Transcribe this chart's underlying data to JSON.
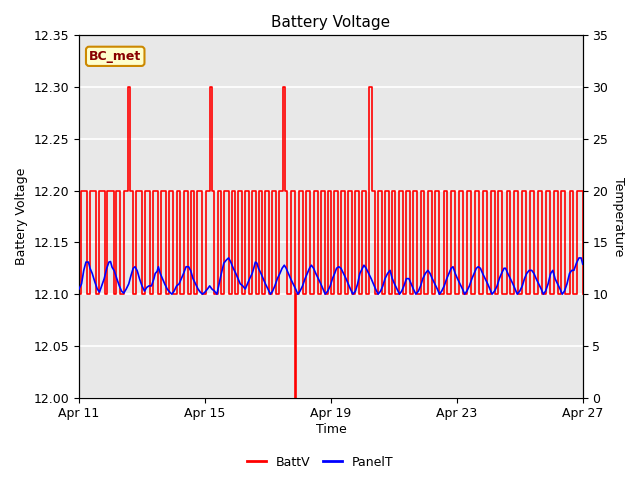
{
  "title": "Battery Voltage",
  "xlabel": "Time",
  "ylabel_left": "Battery Voltage",
  "ylabel_right": "Temperature",
  "annotation": "BC_met",
  "ylim_left": [
    12.0,
    12.35
  ],
  "ylim_right": [
    0,
    35
  ],
  "yticks_left": [
    12.0,
    12.05,
    12.1,
    12.15,
    12.2,
    12.25,
    12.3,
    12.35
  ],
  "yticks_right": [
    0,
    5,
    10,
    15,
    20,
    25,
    30,
    35
  ],
  "xtick_labels": [
    "Apr 11",
    "Apr 15",
    "Apr 19",
    "Apr 23",
    "Apr 27"
  ],
  "background_color": "#ffffff",
  "plot_bg_color": "#e8e8e8",
  "grid_color": "#ffffff",
  "batt_color": "#ff0000",
  "panel_color": "#0000ff",
  "annotation_bg": "#ffffcc",
  "annotation_border": "#cc8800",
  "annotation_text_color": "#880000",
  "batt_data": [
    [
      0,
      12.1
    ],
    [
      0.05,
      12.1
    ],
    [
      0.05,
      12.2
    ],
    [
      0.25,
      12.2
    ],
    [
      0.25,
      12.1
    ],
    [
      0.35,
      12.1
    ],
    [
      0.35,
      12.2
    ],
    [
      0.55,
      12.2
    ],
    [
      0.55,
      12.1
    ],
    [
      0.62,
      12.1
    ],
    [
      0.62,
      12.2
    ],
    [
      0.82,
      12.2
    ],
    [
      0.82,
      12.1
    ],
    [
      0.9,
      12.1
    ],
    [
      0.9,
      12.2
    ],
    [
      1.1,
      12.2
    ],
    [
      1.1,
      12.1
    ],
    [
      1.18,
      12.1
    ],
    [
      1.18,
      12.2
    ],
    [
      1.3,
      12.2
    ],
    [
      1.3,
      12.1
    ],
    [
      1.42,
      12.1
    ],
    [
      1.42,
      12.2
    ],
    [
      1.55,
      12.2
    ],
    [
      1.55,
      12.3
    ],
    [
      1.62,
      12.3
    ],
    [
      1.62,
      12.2
    ],
    [
      1.7,
      12.2
    ],
    [
      1.7,
      12.1
    ],
    [
      1.8,
      12.1
    ],
    [
      1.8,
      12.2
    ],
    [
      2.0,
      12.2
    ],
    [
      2.0,
      12.1
    ],
    [
      2.1,
      12.1
    ],
    [
      2.1,
      12.2
    ],
    [
      2.25,
      12.2
    ],
    [
      2.25,
      12.1
    ],
    [
      2.35,
      12.1
    ],
    [
      2.35,
      12.2
    ],
    [
      2.5,
      12.2
    ],
    [
      2.5,
      12.1
    ],
    [
      2.6,
      12.1
    ],
    [
      2.6,
      12.2
    ],
    [
      2.75,
      12.2
    ],
    [
      2.75,
      12.1
    ],
    [
      2.85,
      12.1
    ],
    [
      2.85,
      12.2
    ],
    [
      3.0,
      12.2
    ],
    [
      3.0,
      12.1
    ],
    [
      3.1,
      12.1
    ],
    [
      3.1,
      12.2
    ],
    [
      3.22,
      12.2
    ],
    [
      3.22,
      12.1
    ],
    [
      3.32,
      12.1
    ],
    [
      3.32,
      12.2
    ],
    [
      3.45,
      12.2
    ],
    [
      3.45,
      12.1
    ],
    [
      3.55,
      12.1
    ],
    [
      3.55,
      12.2
    ],
    [
      3.65,
      12.2
    ],
    [
      3.65,
      12.1
    ],
    [
      3.75,
      12.1
    ],
    [
      3.75,
      12.2
    ],
    [
      3.9,
      12.2
    ],
    [
      3.9,
      12.1
    ],
    [
      4.02,
      12.1
    ],
    [
      4.02,
      12.2
    ],
    [
      4.15,
      12.2
    ],
    [
      4.15,
      12.3
    ],
    [
      4.22,
      12.3
    ],
    [
      4.22,
      12.2
    ],
    [
      4.3,
      12.2
    ],
    [
      4.3,
      12.1
    ],
    [
      4.4,
      12.1
    ],
    [
      4.4,
      12.2
    ],
    [
      4.52,
      12.2
    ],
    [
      4.52,
      12.1
    ],
    [
      4.62,
      12.1
    ],
    [
      4.62,
      12.2
    ],
    [
      4.75,
      12.2
    ],
    [
      4.75,
      12.1
    ],
    [
      4.85,
      12.1
    ],
    [
      4.85,
      12.2
    ],
    [
      4.95,
      12.2
    ],
    [
      4.95,
      12.1
    ],
    [
      5.05,
      12.1
    ],
    [
      5.05,
      12.2
    ],
    [
      5.18,
      12.2
    ],
    [
      5.18,
      12.1
    ],
    [
      5.28,
      12.1
    ],
    [
      5.28,
      12.2
    ],
    [
      5.4,
      12.2
    ],
    [
      5.4,
      12.1
    ],
    [
      5.5,
      12.1
    ],
    [
      5.5,
      12.2
    ],
    [
      5.62,
      12.2
    ],
    [
      5.62,
      12.1
    ],
    [
      5.72,
      12.1
    ],
    [
      5.72,
      12.2
    ],
    [
      5.82,
      12.2
    ],
    [
      5.82,
      12.1
    ],
    [
      5.92,
      12.1
    ],
    [
      5.92,
      12.2
    ],
    [
      6.02,
      12.2
    ],
    [
      6.02,
      12.1
    ],
    [
      6.12,
      12.1
    ],
    [
      6.12,
      12.2
    ],
    [
      6.25,
      12.2
    ],
    [
      6.25,
      12.1
    ],
    [
      6.35,
      12.1
    ],
    [
      6.35,
      12.2
    ],
    [
      6.48,
      12.2
    ],
    [
      6.48,
      12.3
    ],
    [
      6.55,
      12.3
    ],
    [
      6.55,
      12.2
    ],
    [
      6.62,
      12.2
    ],
    [
      6.62,
      12.1
    ],
    [
      6.72,
      12.1
    ],
    [
      6.72,
      12.2
    ],
    [
      6.85,
      12.2
    ],
    [
      6.85,
      12.0
    ],
    [
      6.88,
      12.0
    ],
    [
      6.88,
      12.1
    ],
    [
      7.0,
      12.1
    ],
    [
      7.0,
      12.2
    ],
    [
      7.12,
      12.2
    ],
    [
      7.12,
      12.1
    ],
    [
      7.22,
      12.1
    ],
    [
      7.22,
      12.2
    ],
    [
      7.35,
      12.2
    ],
    [
      7.35,
      12.1
    ],
    [
      7.45,
      12.1
    ],
    [
      7.45,
      12.2
    ],
    [
      7.58,
      12.2
    ],
    [
      7.58,
      12.1
    ],
    [
      7.68,
      12.1
    ],
    [
      7.68,
      12.2
    ],
    [
      7.8,
      12.2
    ],
    [
      7.8,
      12.1
    ],
    [
      7.9,
      12.1
    ],
    [
      7.9,
      12.2
    ],
    [
      8.0,
      12.2
    ],
    [
      8.0,
      12.1
    ],
    [
      8.1,
      12.1
    ],
    [
      8.1,
      12.2
    ],
    [
      8.22,
      12.2
    ],
    [
      8.22,
      12.1
    ],
    [
      8.32,
      12.1
    ],
    [
      8.32,
      12.2
    ],
    [
      8.45,
      12.2
    ],
    [
      8.45,
      12.1
    ],
    [
      8.55,
      12.1
    ],
    [
      8.55,
      12.2
    ],
    [
      8.68,
      12.2
    ],
    [
      8.68,
      12.1
    ],
    [
      8.78,
      12.1
    ],
    [
      8.78,
      12.2
    ],
    [
      8.9,
      12.2
    ],
    [
      8.9,
      12.1
    ],
    [
      9.0,
      12.1
    ],
    [
      9.0,
      12.2
    ],
    [
      9.12,
      12.2
    ],
    [
      9.12,
      12.1
    ],
    [
      9.22,
      12.1
    ],
    [
      9.22,
      12.3
    ],
    [
      9.3,
      12.3
    ],
    [
      9.3,
      12.2
    ],
    [
      9.4,
      12.2
    ],
    [
      9.4,
      12.1
    ],
    [
      9.5,
      12.1
    ],
    [
      9.5,
      12.2
    ],
    [
      9.62,
      12.2
    ],
    [
      9.62,
      12.1
    ],
    [
      9.72,
      12.1
    ],
    [
      9.72,
      12.2
    ],
    [
      9.85,
      12.2
    ],
    [
      9.85,
      12.1
    ],
    [
      9.95,
      12.1
    ],
    [
      9.95,
      12.2
    ],
    [
      10.05,
      12.2
    ],
    [
      10.05,
      12.1
    ],
    [
      10.15,
      12.1
    ],
    [
      10.15,
      12.2
    ],
    [
      10.28,
      12.2
    ],
    [
      10.28,
      12.1
    ],
    [
      10.38,
      12.1
    ],
    [
      10.38,
      12.2
    ],
    [
      10.52,
      12.2
    ],
    [
      10.52,
      12.1
    ],
    [
      10.62,
      12.1
    ],
    [
      10.62,
      12.2
    ],
    [
      10.72,
      12.2
    ],
    [
      10.72,
      12.1
    ],
    [
      10.85,
      12.1
    ],
    [
      10.85,
      12.2
    ],
    [
      10.95,
      12.2
    ],
    [
      10.95,
      12.1
    ],
    [
      11.08,
      12.1
    ],
    [
      11.08,
      12.2
    ],
    [
      11.2,
      12.2
    ],
    [
      11.2,
      12.1
    ],
    [
      11.32,
      12.1
    ],
    [
      11.32,
      12.2
    ],
    [
      11.45,
      12.2
    ],
    [
      11.45,
      12.1
    ],
    [
      11.58,
      12.1
    ],
    [
      11.58,
      12.2
    ],
    [
      11.7,
      12.2
    ],
    [
      11.7,
      12.1
    ],
    [
      11.82,
      12.1
    ],
    [
      11.82,
      12.2
    ],
    [
      11.95,
      12.2
    ],
    [
      11.95,
      12.1
    ],
    [
      12.08,
      12.1
    ],
    [
      12.08,
      12.2
    ],
    [
      12.2,
      12.2
    ],
    [
      12.2,
      12.1
    ],
    [
      12.32,
      12.1
    ],
    [
      12.32,
      12.2
    ],
    [
      12.45,
      12.2
    ],
    [
      12.45,
      12.1
    ],
    [
      12.58,
      12.1
    ],
    [
      12.58,
      12.2
    ],
    [
      12.7,
      12.2
    ],
    [
      12.7,
      12.1
    ],
    [
      12.82,
      12.1
    ],
    [
      12.82,
      12.2
    ],
    [
      12.95,
      12.2
    ],
    [
      12.95,
      12.1
    ],
    [
      13.08,
      12.1
    ],
    [
      13.08,
      12.2
    ],
    [
      13.2,
      12.2
    ],
    [
      13.2,
      12.1
    ],
    [
      13.32,
      12.1
    ],
    [
      13.32,
      12.2
    ],
    [
      13.45,
      12.2
    ],
    [
      13.45,
      12.1
    ],
    [
      13.58,
      12.1
    ],
    [
      13.58,
      12.2
    ],
    [
      13.7,
      12.2
    ],
    [
      13.7,
      12.1
    ],
    [
      13.82,
      12.1
    ],
    [
      13.82,
      12.2
    ],
    [
      13.95,
      12.2
    ],
    [
      13.95,
      12.1
    ],
    [
      14.08,
      12.1
    ],
    [
      14.08,
      12.2
    ],
    [
      14.2,
      12.2
    ],
    [
      14.2,
      12.1
    ],
    [
      14.32,
      12.1
    ],
    [
      14.32,
      12.2
    ],
    [
      14.45,
      12.2
    ],
    [
      14.45,
      12.1
    ],
    [
      14.58,
      12.1
    ],
    [
      14.58,
      12.2
    ],
    [
      14.7,
      12.2
    ],
    [
      14.7,
      12.1
    ],
    [
      14.82,
      12.1
    ],
    [
      14.82,
      12.2
    ],
    [
      14.95,
      12.2
    ],
    [
      14.95,
      12.1
    ],
    [
      15.08,
      12.1
    ],
    [
      15.08,
      12.2
    ],
    [
      15.2,
      12.2
    ],
    [
      15.2,
      12.1
    ],
    [
      15.32,
      12.1
    ],
    [
      15.32,
      12.2
    ],
    [
      15.45,
      12.2
    ],
    [
      15.45,
      12.1
    ],
    [
      15.58,
      12.1
    ],
    [
      15.58,
      12.2
    ],
    [
      15.7,
      12.2
    ],
    [
      15.7,
      12.1
    ],
    [
      15.82,
      12.1
    ],
    [
      15.82,
      12.2
    ],
    [
      16.0,
      12.2
    ],
    [
      16.0,
      12.1
    ]
  ],
  "panel_data_temp": [
    [
      0.0,
      10.5
    ],
    [
      0.08,
      11.0
    ],
    [
      0.15,
      12.3
    ],
    [
      0.22,
      13.1
    ],
    [
      0.3,
      13.1
    ],
    [
      0.35,
      12.5
    ],
    [
      0.42,
      12.0
    ],
    [
      0.5,
      11.2
    ],
    [
      0.58,
      10.5
    ],
    [
      0.65,
      10.2
    ],
    [
      0.72,
      10.8
    ],
    [
      0.8,
      11.5
    ],
    [
      0.88,
      12.5
    ],
    [
      0.95,
      13.1
    ],
    [
      1.0,
      13.15
    ],
    [
      1.05,
      12.6
    ],
    [
      1.12,
      12.25
    ],
    [
      1.2,
      11.5
    ],
    [
      1.28,
      10.8
    ],
    [
      1.35,
      10.3
    ],
    [
      1.42,
      10.1
    ],
    [
      1.5,
      10.5
    ],
    [
      1.58,
      11.0
    ],
    [
      1.65,
      11.8
    ],
    [
      1.72,
      12.5
    ],
    [
      1.78,
      12.65
    ],
    [
      1.85,
      12.25
    ],
    [
      1.92,
      11.5
    ],
    [
      2.0,
      10.8
    ],
    [
      2.08,
      10.3
    ],
    [
      2.15,
      10.65
    ],
    [
      2.22,
      10.8
    ],
    [
      2.3,
      10.8
    ],
    [
      2.38,
      11.5
    ],
    [
      2.42,
      12.0
    ],
    [
      2.48,
      12.2
    ],
    [
      2.52,
      12.65
    ],
    [
      2.58,
      12.0
    ],
    [
      2.65,
      11.5
    ],
    [
      2.72,
      11.0
    ],
    [
      2.8,
      10.5
    ],
    [
      2.88,
      10.2
    ],
    [
      2.95,
      10.0
    ],
    [
      3.02,
      10.3
    ],
    [
      3.1,
      10.8
    ],
    [
      3.18,
      11.0
    ],
    [
      3.25,
      11.5
    ],
    [
      3.32,
      12.0
    ],
    [
      3.4,
      12.65
    ],
    [
      3.48,
      12.65
    ],
    [
      3.55,
      12.25
    ],
    [
      3.62,
      11.5
    ],
    [
      3.7,
      11.0
    ],
    [
      3.78,
      10.5
    ],
    [
      3.85,
      10.2
    ],
    [
      3.92,
      10.0
    ],
    [
      4.0,
      10.2
    ],
    [
      4.08,
      10.5
    ],
    [
      4.15,
      10.8
    ],
    [
      4.22,
      10.5
    ],
    [
      4.3,
      10.3
    ],
    [
      4.38,
      10.0
    ],
    [
      4.45,
      11.0
    ],
    [
      4.52,
      12.0
    ],
    [
      4.6,
      13.0
    ],
    [
      4.68,
      13.3
    ],
    [
      4.75,
      13.5
    ],
    [
      4.82,
      13.1
    ],
    [
      4.9,
      12.5
    ],
    [
      4.98,
      12.0
    ],
    [
      5.05,
      11.5
    ],
    [
      5.12,
      11.0
    ],
    [
      5.2,
      10.8
    ],
    [
      5.28,
      10.5
    ],
    [
      5.35,
      11.0
    ],
    [
      5.42,
      11.5
    ],
    [
      5.5,
      12.0
    ],
    [
      5.55,
      12.5
    ],
    [
      5.6,
      13.1
    ],
    [
      5.65,
      13.0
    ],
    [
      5.7,
      12.5
    ],
    [
      5.78,
      12.0
    ],
    [
      5.85,
      11.5
    ],
    [
      5.92,
      11.0
    ],
    [
      6.0,
      10.5
    ],
    [
      6.08,
      10.0
    ],
    [
      6.15,
      10.3
    ],
    [
      6.22,
      10.8
    ],
    [
      6.3,
      11.5
    ],
    [
      6.38,
      12.0
    ],
    [
      6.45,
      12.5
    ],
    [
      6.52,
      12.8
    ],
    [
      6.58,
      12.5
    ],
    [
      6.65,
      12.0
    ],
    [
      6.72,
      11.5
    ],
    [
      6.8,
      11.0
    ],
    [
      6.88,
      10.5
    ],
    [
      6.95,
      10.0
    ],
    [
      7.02,
      10.3
    ],
    [
      7.1,
      10.8
    ],
    [
      7.18,
      11.5
    ],
    [
      7.25,
      12.0
    ],
    [
      7.32,
      12.5
    ],
    [
      7.38,
      12.8
    ],
    [
      7.45,
      12.5
    ],
    [
      7.52,
      12.0
    ],
    [
      7.6,
      11.5
    ],
    [
      7.68,
      11.0
    ],
    [
      7.75,
      10.5
    ],
    [
      7.82,
      10.0
    ],
    [
      7.9,
      10.3
    ],
    [
      7.98,
      10.8
    ],
    [
      8.05,
      11.5
    ],
    [
      8.12,
      12.0
    ],
    [
      8.18,
      12.5
    ],
    [
      8.25,
      12.65
    ],
    [
      8.32,
      12.5
    ],
    [
      8.4,
      12.0
    ],
    [
      8.48,
      11.5
    ],
    [
      8.55,
      11.0
    ],
    [
      8.62,
      10.5
    ],
    [
      8.7,
      10.0
    ],
    [
      8.78,
      10.3
    ],
    [
      8.85,
      11.0
    ],
    [
      8.92,
      12.0
    ],
    [
      9.0,
      12.5
    ],
    [
      9.05,
      12.8
    ],
    [
      9.12,
      12.5
    ],
    [
      9.2,
      12.0
    ],
    [
      9.28,
      11.5
    ],
    [
      9.35,
      11.0
    ],
    [
      9.42,
      10.5
    ],
    [
      9.5,
      10.0
    ],
    [
      9.58,
      10.3
    ],
    [
      9.65,
      10.8
    ],
    [
      9.72,
      11.5
    ],
    [
      9.8,
      12.0
    ],
    [
      9.88,
      12.3
    ],
    [
      9.95,
      11.5
    ],
    [
      10.02,
      11.0
    ],
    [
      10.1,
      10.5
    ],
    [
      10.18,
      10.0
    ],
    [
      10.25,
      10.3
    ],
    [
      10.32,
      10.8
    ],
    [
      10.4,
      11.5
    ],
    [
      10.48,
      11.5
    ],
    [
      10.55,
      11.0
    ],
    [
      10.62,
      10.5
    ],
    [
      10.7,
      10.0
    ],
    [
      10.78,
      10.3
    ],
    [
      10.85,
      10.8
    ],
    [
      10.92,
      11.5
    ],
    [
      11.0,
      12.0
    ],
    [
      11.08,
      12.3
    ],
    [
      11.15,
      12.0
    ],
    [
      11.22,
      11.5
    ],
    [
      11.3,
      11.0
    ],
    [
      11.38,
      10.5
    ],
    [
      11.45,
      10.0
    ],
    [
      11.52,
      10.3
    ],
    [
      11.6,
      10.8
    ],
    [
      11.68,
      11.5
    ],
    [
      11.75,
      12.0
    ],
    [
      11.82,
      12.5
    ],
    [
      11.88,
      12.65
    ],
    [
      11.95,
      12.0
    ],
    [
      12.02,
      11.5
    ],
    [
      12.1,
      11.0
    ],
    [
      12.18,
      10.5
    ],
    [
      12.25,
      10.0
    ],
    [
      12.32,
      10.3
    ],
    [
      12.4,
      10.8
    ],
    [
      12.48,
      11.5
    ],
    [
      12.55,
      12.0
    ],
    [
      12.62,
      12.5
    ],
    [
      12.68,
      12.65
    ],
    [
      12.75,
      12.5
    ],
    [
      12.82,
      12.0
    ],
    [
      12.9,
      11.5
    ],
    [
      12.98,
      11.0
    ],
    [
      13.05,
      10.5
    ],
    [
      13.12,
      10.0
    ],
    [
      13.2,
      10.3
    ],
    [
      13.28,
      10.8
    ],
    [
      13.35,
      11.5
    ],
    [
      13.42,
      12.0
    ],
    [
      13.5,
      12.5
    ],
    [
      13.55,
      12.5
    ],
    [
      13.62,
      12.0
    ],
    [
      13.7,
      11.5
    ],
    [
      13.78,
      11.0
    ],
    [
      13.85,
      10.5
    ],
    [
      13.92,
      10.0
    ],
    [
      14.0,
      10.3
    ],
    [
      14.08,
      10.8
    ],
    [
      14.15,
      11.5
    ],
    [
      14.22,
      12.0
    ],
    [
      14.3,
      12.3
    ],
    [
      14.38,
      12.3
    ],
    [
      14.45,
      12.0
    ],
    [
      14.52,
      11.5
    ],
    [
      14.6,
      11.0
    ],
    [
      14.68,
      10.5
    ],
    [
      14.75,
      10.0
    ],
    [
      14.82,
      10.3
    ],
    [
      14.9,
      11.0
    ],
    [
      14.98,
      12.0
    ],
    [
      15.05,
      12.3
    ],
    [
      15.12,
      11.5
    ],
    [
      15.2,
      11.0
    ],
    [
      15.28,
      10.5
    ],
    [
      15.35,
      10.0
    ],
    [
      15.42,
      10.3
    ],
    [
      15.5,
      11.0
    ],
    [
      15.58,
      12.0
    ],
    [
      15.65,
      12.3
    ],
    [
      15.72,
      12.3
    ],
    [
      15.8,
      13.0
    ],
    [
      15.88,
      13.5
    ],
    [
      15.95,
      13.5
    ],
    [
      16.0,
      12.9
    ]
  ]
}
